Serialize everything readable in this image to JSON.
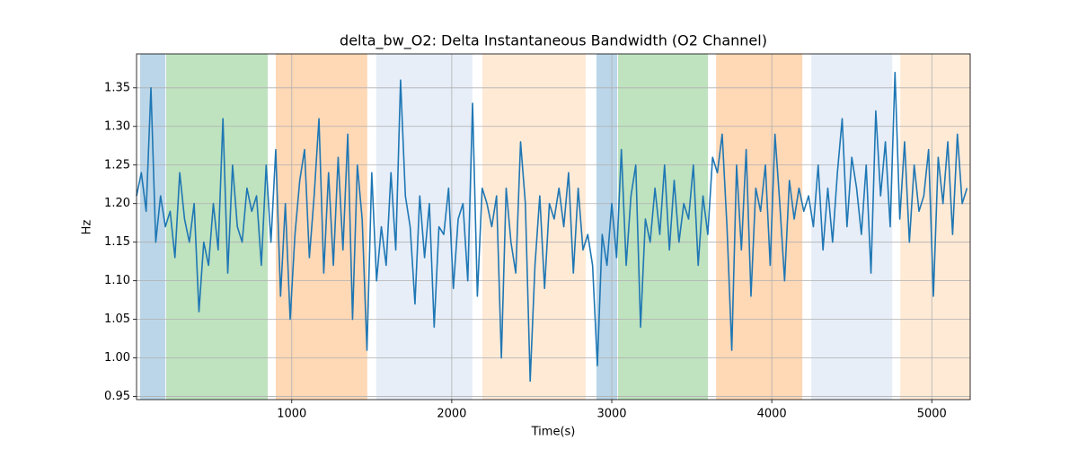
{
  "chart_data": {
    "type": "line",
    "title": "delta_bw_O2: Delta Instantaneous Bandwidth (O2 Channel)",
    "xlabel": "Time(s)",
    "ylabel": "Hz",
    "color": "#1f77b4",
    "x": [
      30,
      60,
      90,
      120,
      150,
      180,
      210,
      240,
      270,
      300,
      330,
      360,
      390,
      420,
      450,
      480,
      510,
      540,
      570,
      600,
      630,
      660,
      690,
      720,
      750,
      780,
      810,
      840,
      870,
      900,
      930,
      960,
      990,
      1020,
      1050,
      1080,
      1110,
      1140,
      1170,
      1200,
      1230,
      1260,
      1290,
      1320,
      1350,
      1380,
      1410,
      1440,
      1470,
      1500,
      1530,
      1560,
      1590,
      1620,
      1650,
      1680,
      1710,
      1740,
      1770,
      1800,
      1830,
      1860,
      1890,
      1920,
      1950,
      1980,
      2010,
      2040,
      2070,
      2100,
      2130,
      2160,
      2190,
      2220,
      2250,
      2280,
      2310,
      2340,
      2370,
      2400,
      2430,
      2460,
      2490,
      2520,
      2550,
      2580,
      2610,
      2640,
      2670,
      2700,
      2730,
      2760,
      2790,
      2820,
      2850,
      2880,
      2910,
      2940,
      2970,
      3000,
      3030,
      3060,
      3090,
      3120,
      3150,
      3180,
      3210,
      3240,
      3270,
      3300,
      3330,
      3360,
      3390,
      3420,
      3450,
      3480,
      3510,
      3540,
      3570,
      3600,
      3630,
      3660,
      3690,
      3720,
      3750,
      3780,
      3810,
      3840,
      3870,
      3900,
      3930,
      3960,
      3990,
      4020,
      4050,
      4080,
      4110,
      4140,
      4170,
      4200,
      4230,
      4260,
      4290,
      4320,
      4350,
      4380,
      4410,
      4440,
      4470,
      4500,
      4530,
      4560,
      4590,
      4620,
      4650,
      4680,
      4710,
      4740,
      4770,
      4800,
      4830,
      4860,
      4890,
      4920,
      4950,
      4980,
      5010,
      5040,
      5070,
      5100,
      5130,
      5160,
      5190,
      5220
    ],
    "values": [
      1.21,
      1.24,
      1.19,
      1.35,
      1.15,
      1.21,
      1.17,
      1.19,
      1.13,
      1.24,
      1.18,
      1.15,
      1.2,
      1.06,
      1.15,
      1.12,
      1.2,
      1.14,
      1.31,
      1.11,
      1.25,
      1.17,
      1.15,
      1.22,
      1.19,
      1.21,
      1.12,
      1.25,
      1.15,
      1.27,
      1.08,
      1.2,
      1.05,
      1.16,
      1.23,
      1.27,
      1.13,
      1.21,
      1.31,
      1.11,
      1.24,
      1.12,
      1.26,
      1.14,
      1.29,
      1.05,
      1.25,
      1.18,
      1.01,
      1.24,
      1.1,
      1.17,
      1.12,
      1.24,
      1.14,
      1.36,
      1.21,
      1.17,
      1.07,
      1.21,
      1.13,
      1.2,
      1.04,
      1.17,
      1.16,
      1.22,
      1.09,
      1.18,
      1.2,
      1.1,
      1.33,
      1.08,
      1.22,
      1.2,
      1.17,
      1.21,
      1.0,
      1.22,
      1.15,
      1.11,
      1.28,
      1.2,
      0.97,
      1.12,
      1.21,
      1.09,
      1.2,
      1.18,
      1.22,
      1.17,
      1.24,
      1.11,
      1.22,
      1.14,
      1.16,
      1.12,
      0.99,
      1.16,
      1.12,
      1.2,
      1.13,
      1.27,
      1.12,
      1.21,
      1.25,
      1.04,
      1.18,
      1.15,
      1.22,
      1.16,
      1.25,
      1.14,
      1.23,
      1.15,
      1.2,
      1.18,
      1.25,
      1.12,
      1.21,
      1.16,
      1.26,
      1.24,
      1.29,
      1.17,
      1.01,
      1.25,
      1.14,
      1.27,
      1.08,
      1.22,
      1.19,
      1.25,
      1.12,
      1.29,
      1.2,
      1.1,
      1.23,
      1.18,
      1.22,
      1.19,
      1.21,
      1.17,
      1.25,
      1.14,
      1.22,
      1.15,
      1.24,
      1.31,
      1.17,
      1.26,
      1.22,
      1.16,
      1.25,
      1.11,
      1.32,
      1.21,
      1.28,
      1.17,
      1.37,
      1.18,
      1.28,
      1.15,
      1.25,
      1.19,
      1.21,
      1.27,
      1.08,
      1.26,
      1.2,
      1.28,
      1.16,
      1.29,
      1.2,
      1.22
    ],
    "spans": [
      {
        "start": 52,
        "end": 210,
        "color": "#1f77b4",
        "alpha": 0.3
      },
      {
        "start": 215,
        "end": 850,
        "color": "#2ca02c",
        "alpha": 0.3
      },
      {
        "start": 900,
        "end": 1472,
        "color": "#ff7f0e",
        "alpha": 0.3
      },
      {
        "start": 1528,
        "end": 2129,
        "color": "#aec7e8",
        "alpha": 0.3
      },
      {
        "start": 2191,
        "end": 2837,
        "color": "#ffbb78",
        "alpha": 0.3
      },
      {
        "start": 2904,
        "end": 3034,
        "color": "#1f77b4",
        "alpha": 0.3
      },
      {
        "start": 3039,
        "end": 3601,
        "color": "#2ca02c",
        "alpha": 0.3
      },
      {
        "start": 3652,
        "end": 4191,
        "color": "#ff7f0e",
        "alpha": 0.3
      },
      {
        "start": 4247,
        "end": 4753,
        "color": "#aec7e8",
        "alpha": 0.3
      },
      {
        "start": 4803,
        "end": 5240,
        "color": "#ffbb78",
        "alpha": 0.3
      }
    ],
    "xlim": [
      30,
      5240
    ],
    "ylim": [
      0.946,
      1.394
    ],
    "xticks": [
      1000,
      2000,
      3000,
      4000,
      5000
    ],
    "yticks": [
      0.95,
      {
        "value": 1.0,
        "label": "1.00"
      },
      1.05,
      {
        "value": 1.1,
        "label": "1.10"
      },
      1.15,
      {
        "value": 1.2,
        "label": "1.20"
      },
      1.25,
      {
        "value": 1.3,
        "label": "1.30"
      },
      1.35
    ],
    "grid": true
  }
}
